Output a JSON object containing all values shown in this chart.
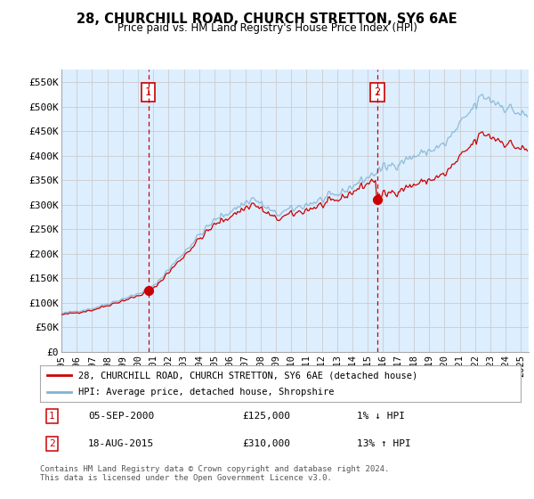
{
  "title": "28, CHURCHILL ROAD, CHURCH STRETTON, SY6 6AE",
  "subtitle": "Price paid vs. HM Land Registry's House Price Index (HPI)",
  "ylabel_ticks": [
    "£0",
    "£50K",
    "£100K",
    "£150K",
    "£200K",
    "£250K",
    "£300K",
    "£350K",
    "£400K",
    "£450K",
    "£500K",
    "£550K"
  ],
  "ytick_values": [
    0,
    50000,
    100000,
    150000,
    200000,
    250000,
    300000,
    350000,
    400000,
    450000,
    500000,
    550000
  ],
  "ylim": [
    0,
    575000
  ],
  "xlim_start": 1995.0,
  "xlim_end": 2025.5,
  "xtick_years": [
    1995,
    1996,
    1997,
    1998,
    1999,
    2000,
    2001,
    2002,
    2003,
    2004,
    2005,
    2006,
    2007,
    2008,
    2009,
    2010,
    2011,
    2012,
    2013,
    2014,
    2015,
    2016,
    2017,
    2018,
    2019,
    2020,
    2021,
    2022,
    2023,
    2024,
    2025
  ],
  "sale1_x": 2000.67,
  "sale1_y": 125000,
  "sale1_label": "1",
  "sale1_date": "05-SEP-2000",
  "sale1_price": "£125,000",
  "sale1_hpi": "1% ↓ HPI",
  "sale2_x": 2015.62,
  "sale2_y": 310000,
  "sale2_label": "2",
  "sale2_date": "18-AUG-2015",
  "sale2_price": "£310,000",
  "sale2_hpi": "13% ↑ HPI",
  "line1_color": "#cc0000",
  "line2_color": "#7fb3d3",
  "vline_color": "#cc0000",
  "marker_color": "#cc0000",
  "plot_bg_color": "#ddeeff",
  "legend_line1": "28, CHURCHILL ROAD, CHURCH STRETTON, SY6 6AE (detached house)",
  "legend_line2": "HPI: Average price, detached house, Shropshire",
  "footer": "Contains HM Land Registry data © Crown copyright and database right 2024.\nThis data is licensed under the Open Government Licence v3.0.",
  "bg_color": "#ffffff",
  "grid_color": "#cccccc"
}
